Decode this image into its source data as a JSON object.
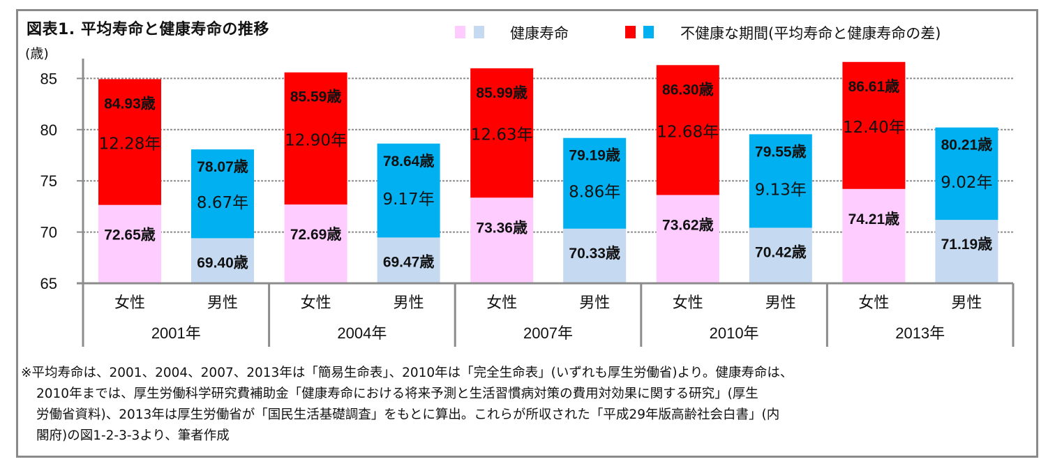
{
  "title": "図表1.  平均寿命と健康寿命の推移",
  "y_unit": "(歳)",
  "legend": {
    "healthy_label": "健康寿命",
    "unhealthy_label": "不健康な期間(平均寿命と健康寿命の差)",
    "colors": {
      "healthy_female": "#FFCCFF",
      "healthy_male": "#C5D9F1",
      "unhealthy_female": "#FF0000",
      "unhealthy_male": "#00B0F0"
    }
  },
  "chart_data": {
    "type": "bar",
    "stacked": true,
    "title": "図表1.  平均寿命と健康寿命の推移",
    "ylabel": "(歳)",
    "ylim": [
      65,
      87.5
    ],
    "yticks": [
      65,
      70,
      75,
      80,
      85
    ],
    "grid": true,
    "legend_position": "top-right",
    "groups": [
      "2001年",
      "2004年",
      "2007年",
      "2010年",
      "2013年"
    ],
    "sub_categories": [
      "女性",
      "男性"
    ],
    "bars": [
      {
        "group": "2001年",
        "sex": "女性",
        "healthy": 72.65,
        "life": 84.93,
        "gap": 12.28,
        "healthy_label": "72.65歳",
        "life_label": "84.93歳",
        "gap_label": "12.28年"
      },
      {
        "group": "2001年",
        "sex": "男性",
        "healthy": 69.4,
        "life": 78.07,
        "gap": 8.67,
        "healthy_label": "69.40歳",
        "life_label": "78.07歳",
        "gap_label": "8.67年"
      },
      {
        "group": "2004年",
        "sex": "女性",
        "healthy": 72.69,
        "life": 85.59,
        "gap": 12.9,
        "healthy_label": "72.69歳",
        "life_label": "85.59歳",
        "gap_label": "12.90年"
      },
      {
        "group": "2004年",
        "sex": "男性",
        "healthy": 69.47,
        "life": 78.64,
        "gap": 9.17,
        "healthy_label": "69.47歳",
        "life_label": "78.64歳",
        "gap_label": "9.17年"
      },
      {
        "group": "2007年",
        "sex": "女性",
        "healthy": 73.36,
        "life": 85.99,
        "gap": 12.63,
        "healthy_label": "73.36歳",
        "life_label": "85.99歳",
        "gap_label": "12.63年"
      },
      {
        "group": "2007年",
        "sex": "男性",
        "healthy": 70.33,
        "life": 79.19,
        "gap": 8.86,
        "healthy_label": "70.33歳",
        "life_label": "79.19歳",
        "gap_label": "8.86年"
      },
      {
        "group": "2010年",
        "sex": "女性",
        "healthy": 73.62,
        "life": 86.3,
        "gap": 12.68,
        "healthy_label": "73.62歳",
        "life_label": "86.30歳",
        "gap_label": "12.68年"
      },
      {
        "group": "2010年",
        "sex": "男性",
        "healthy": 70.42,
        "life": 79.55,
        "gap": 9.13,
        "healthy_label": "70.42歳",
        "life_label": "79.55歳",
        "gap_label": "9.13年"
      },
      {
        "group": "2013年",
        "sex": "女性",
        "healthy": 74.21,
        "life": 86.61,
        "gap": 12.4,
        "healthy_label": "74.21歳",
        "life_label": "86.61歳",
        "gap_label": "12.40年"
      },
      {
        "group": "2013年",
        "sex": "男性",
        "healthy": 71.19,
        "life": 80.21,
        "gap": 9.02,
        "healthy_label": "71.19歳",
        "life_label": "80.21歳",
        "gap_label": "9.02年"
      }
    ]
  },
  "notes": [
    "※平均寿命は、2001、2004、2007、2013年は「簡易生命表」、2010年は「完全生命表」(いずれも厚生労働省)より。健康寿命は、",
    "2010年までは、厚生労働科学研究費補助金「健康寿命における将来予測と生活習慣病対策の費用対効果に関する研究」(厚生",
    "労働省資料)、2013年は厚生労働省が「国民生活基礎調査」をもとに算出。これらが所収された「平成29年版高齢社会白書」(内",
    "閣府)の図1-2-3-3より、筆者作成"
  ]
}
